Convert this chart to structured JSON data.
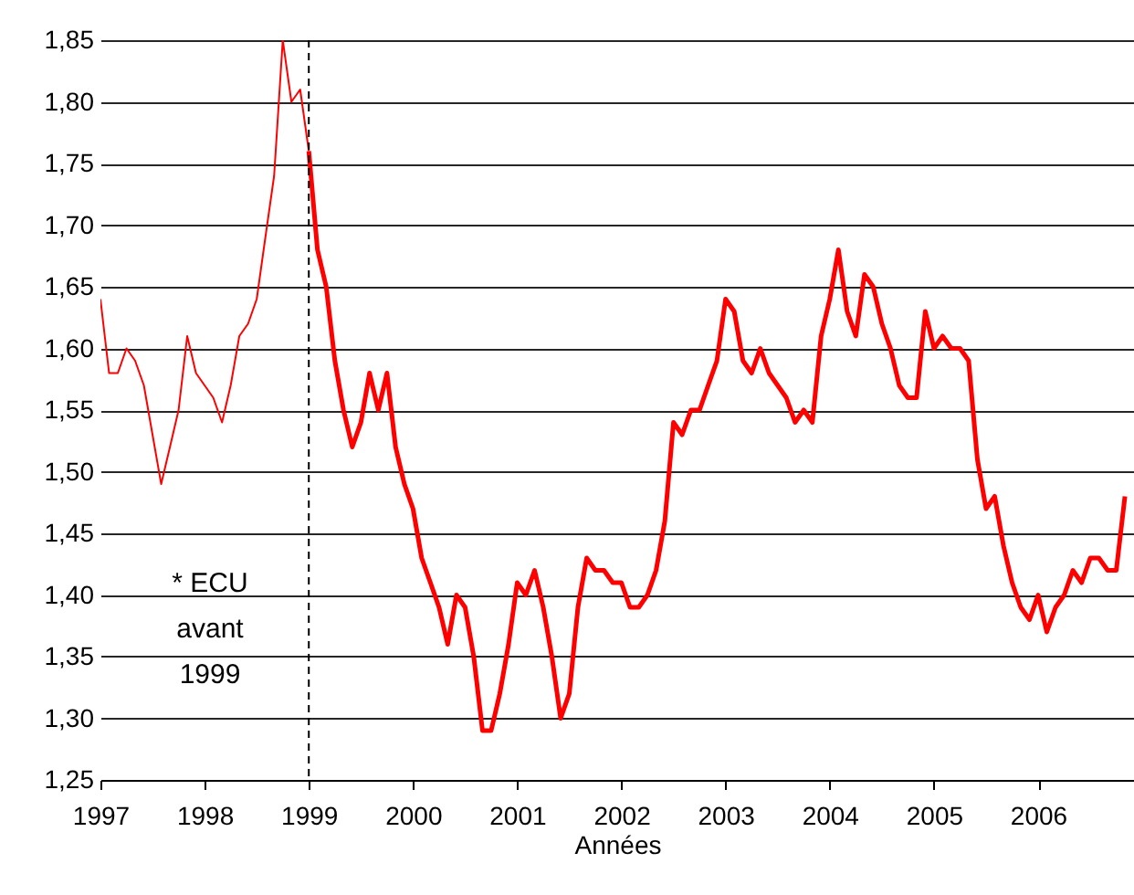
{
  "chart_data": {
    "type": "line",
    "xlabel": "Années",
    "xlim": [
      1997,
      2006.92
    ],
    "xticks": [
      1997,
      1998,
      1999,
      2000,
      2001,
      2002,
      2003,
      2004,
      2005,
      2006
    ],
    "ylim": [
      1.25,
      1.85
    ],
    "yticks": [
      {
        "value": 1.25,
        "label": "1,25"
      },
      {
        "value": 1.3,
        "label": "1,30"
      },
      {
        "value": 1.35,
        "label": "1,35"
      },
      {
        "value": 1.4,
        "label": "1,40"
      },
      {
        "value": 1.45,
        "label": "1,45"
      },
      {
        "value": 1.5,
        "label": "1,50"
      },
      {
        "value": 1.55,
        "label": "1,55"
      },
      {
        "value": 1.6,
        "label": "1,60"
      },
      {
        "value": 1.65,
        "label": "1,65"
      },
      {
        "value": 1.7,
        "label": "1,70"
      },
      {
        "value": 1.75,
        "label": "1,75"
      },
      {
        "value": 1.8,
        "label": "1,80"
      },
      {
        "value": 1.85,
        "label": "1,85"
      }
    ],
    "grid": "y",
    "marker": "none",
    "line_style": "solid",
    "series": [
      {
        "color": "#ff0000",
        "x": [
          1997,
          1997.083,
          1997.167,
          1997.25,
          1997.333,
          1997.417,
          1997.5,
          1997.583,
          1997.667,
          1997.75,
          1997.833,
          1997.917,
          1998,
          1998.083,
          1998.167,
          1998.25,
          1998.333,
          1998.417,
          1998.5,
          1998.583,
          1998.667,
          1998.75,
          1998.833,
          1998.917,
          1999
        ],
        "values": [
          1.64,
          1.58,
          1.58,
          1.6,
          1.59,
          1.57,
          1.53,
          1.49,
          1.52,
          1.55,
          1.61,
          1.58,
          1.57,
          1.56,
          1.54,
          1.57,
          1.61,
          1.62,
          1.64,
          1.69,
          1.74,
          1.85,
          1.8,
          1.81,
          1.76
        ]
      },
      {
        "color": "#ff0000",
        "x": [
          1999,
          1999.083,
          1999.167,
          1999.25,
          1999.333,
          1999.417,
          1999.5,
          1999.583,
          1999.667,
          1999.75,
          1999.833,
          1999.917,
          2000,
          2000.083,
          2000.167,
          2000.25,
          2000.333,
          2000.417,
          2000.5,
          2000.583,
          2000.667,
          2000.75,
          2000.833,
          2000.917,
          2001,
          2001.083,
          2001.167,
          2001.25,
          2001.333,
          2001.417,
          2001.5,
          2001.583,
          2001.667,
          2001.75,
          2001.833,
          2001.917,
          2002,
          2002.083,
          2002.167,
          2002.25,
          2002.333,
          2002.417,
          2002.5,
          2002.583,
          2002.667,
          2002.75,
          2002.833,
          2002.917,
          2003,
          2003.083,
          2003.167,
          2003.25,
          2003.333,
          2003.417,
          2003.5,
          2003.583,
          2003.667,
          2003.75,
          2003.833,
          2003.917,
          2004,
          2004.083,
          2004.167,
          2004.25,
          2004.333,
          2004.417,
          2004.5,
          2004.583,
          2004.667,
          2004.75,
          2004.833,
          2004.917,
          2005,
          2005.083,
          2005.167,
          2005.25,
          2005.333,
          2005.417,
          2005.5,
          2005.583,
          2005.667,
          2005.75,
          2005.833,
          2005.917,
          2006,
          2006.083,
          2006.167,
          2006.25,
          2006.333,
          2006.417,
          2006.5,
          2006.583,
          2006.667,
          2006.75,
          2006.833
        ],
        "values": [
          1.76,
          1.68,
          1.65,
          1.59,
          1.55,
          1.52,
          1.54,
          1.58,
          1.55,
          1.58,
          1.52,
          1.49,
          1.47,
          1.43,
          1.41,
          1.39,
          1.36,
          1.4,
          1.39,
          1.35,
          1.29,
          1.29,
          1.32,
          1.36,
          1.41,
          1.4,
          1.42,
          1.39,
          1.35,
          1.3,
          1.32,
          1.39,
          1.43,
          1.42,
          1.42,
          1.41,
          1.41,
          1.39,
          1.39,
          1.4,
          1.42,
          1.46,
          1.54,
          1.53,
          1.55,
          1.55,
          1.57,
          1.59,
          1.64,
          1.63,
          1.59,
          1.58,
          1.6,
          1.58,
          1.57,
          1.56,
          1.54,
          1.55,
          1.54,
          1.61,
          1.64,
          1.68,
          1.63,
          1.61,
          1.66,
          1.65,
          1.62,
          1.6,
          1.57,
          1.56,
          1.56,
          1.63,
          1.6,
          1.61,
          1.6,
          1.6,
          1.59,
          1.51,
          1.47,
          1.48,
          1.44,
          1.41,
          1.39,
          1.38,
          1.4,
          1.37,
          1.39,
          1.4,
          1.42,
          1.41,
          1.43,
          1.43,
          1.42,
          1.42,
          1.48
        ]
      }
    ],
    "ref_lines": [
      {
        "axis": "x",
        "value": 1999,
        "color": "#000000",
        "line_style": "dashed"
      }
    ],
    "annotations": [
      "* ECU avant 1999"
    ]
  }
}
